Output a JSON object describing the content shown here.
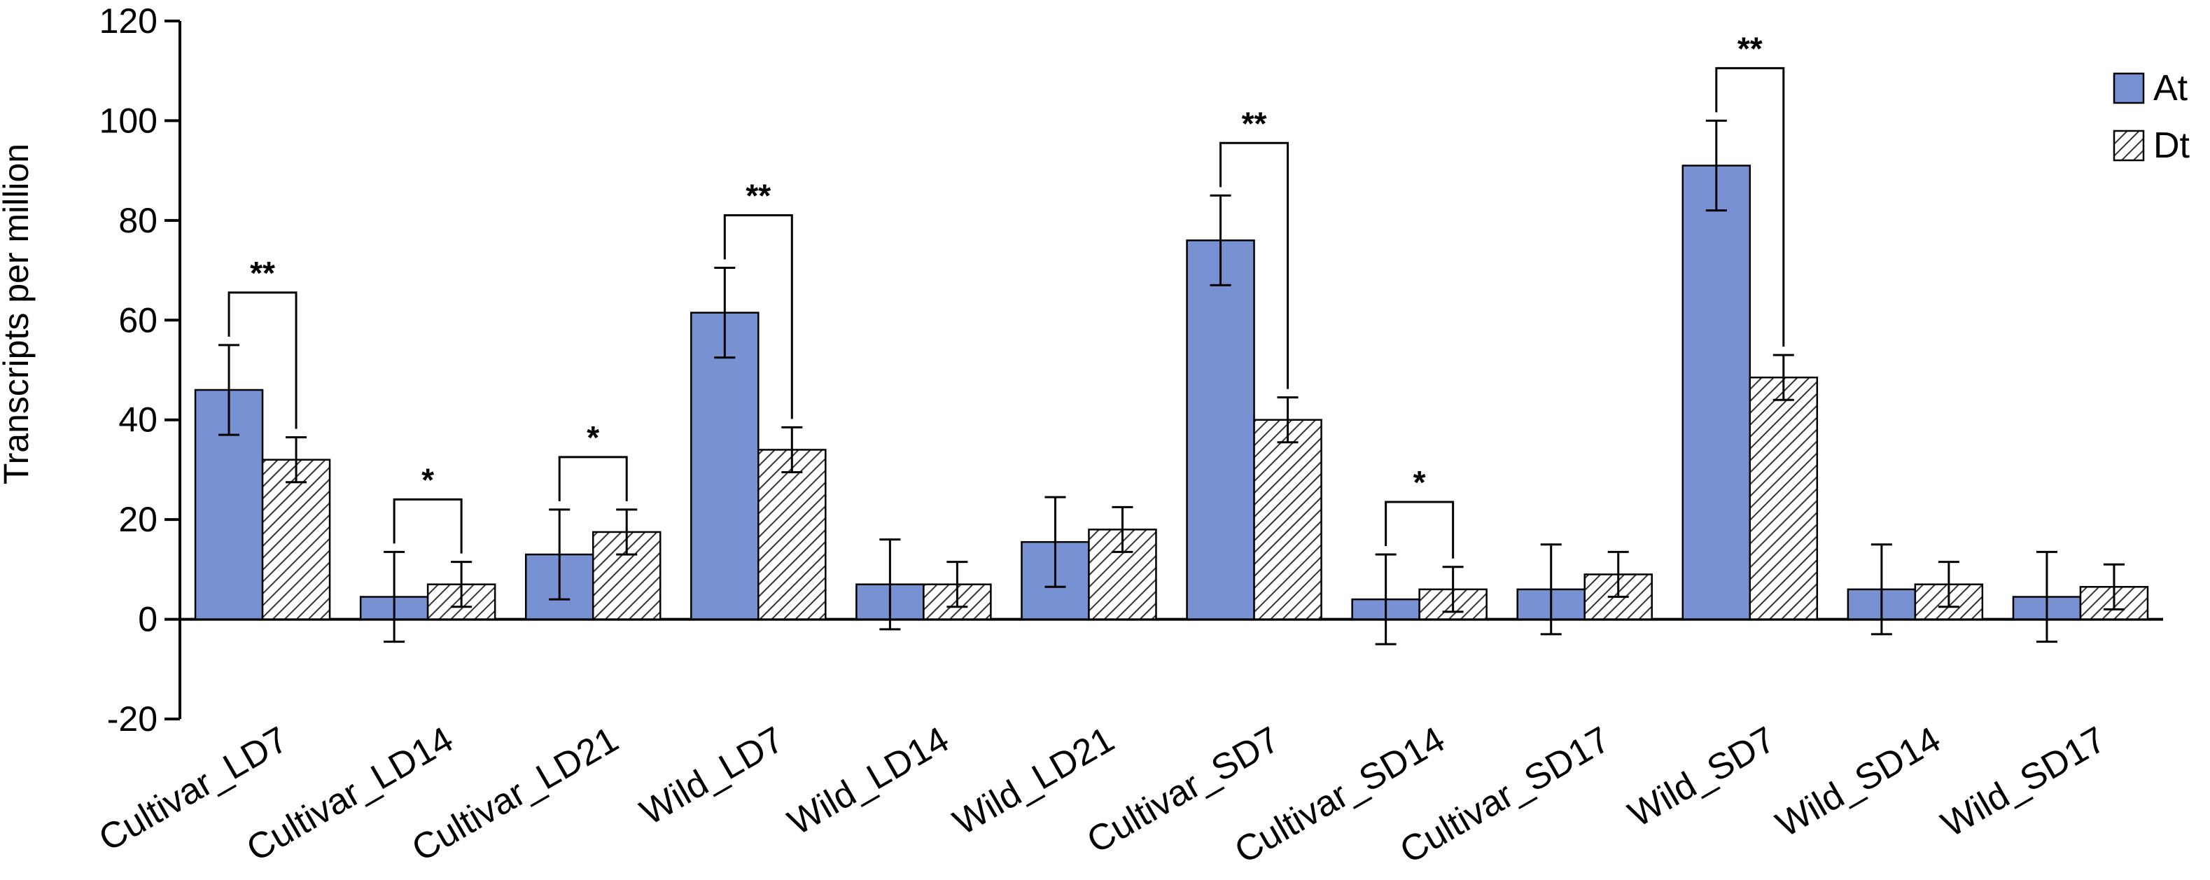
{
  "chart_data": {
    "type": "bar",
    "title": "",
    "xlabel": "",
    "ylabel": "Transcripts per million",
    "ylim": [
      -20,
      120
    ],
    "yticks": [
      -20,
      0,
      20,
      40,
      60,
      80,
      100,
      120
    ],
    "grid": false,
    "legend_position": "top-right",
    "categories": [
      "Cultivar_LD7",
      "Cultivar_LD14",
      "Cultivar_LD21",
      "Wild_LD7",
      "Wild_LD14",
      "Wild_LD21",
      "Cultivar_SD7",
      "Cultivar_SD14",
      "Cultivar_SD17",
      "Wild_SD7",
      "Wild_SD14",
      "Wild_SD17"
    ],
    "series": [
      {
        "name": "At",
        "color": "#7891d3",
        "pattern": "solid",
        "values": [
          46,
          4.5,
          13,
          61.5,
          7,
          15.5,
          76,
          4,
          6,
          91,
          6,
          4.5
        ],
        "errors": [
          9,
          9,
          9,
          9,
          9,
          9,
          9,
          9,
          9,
          9,
          9,
          9
        ]
      },
      {
        "name": "Dt",
        "color": "#ffffff",
        "pattern": "hatched",
        "values": [
          32,
          7,
          17.5,
          34,
          7,
          18,
          40,
          6,
          9,
          48.5,
          7,
          6.5
        ],
        "errors": [
          4.5,
          4.5,
          4.5,
          4.5,
          4.5,
          4.5,
          4.5,
          4.5,
          4.5,
          4.5,
          4.5,
          4.5
        ]
      }
    ],
    "significance": [
      {
        "category": "Cultivar_LD7",
        "label": "**"
      },
      {
        "category": "Cultivar_LD14",
        "label": "*"
      },
      {
        "category": "Cultivar_LD21",
        "label": "*"
      },
      {
        "category": "Wild_LD7",
        "label": "**"
      },
      {
        "category": "Cultivar_SD7",
        "label": "**"
      },
      {
        "category": "Cultivar_SD14",
        "label": "*"
      },
      {
        "category": "Wild_SD7",
        "label": "**"
      }
    ]
  }
}
